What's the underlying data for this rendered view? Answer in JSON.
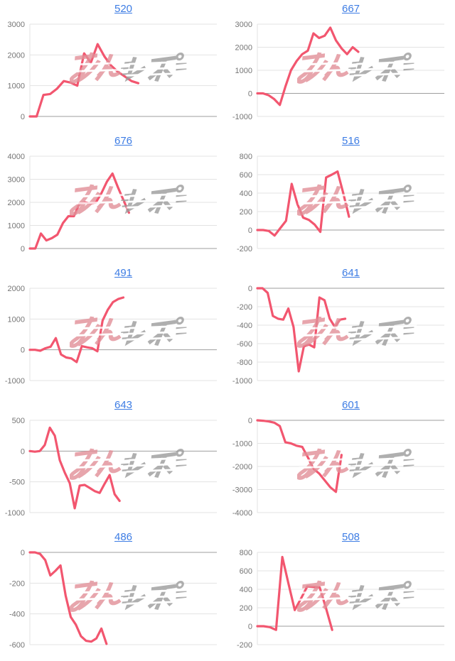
{
  "page": {
    "background": "#ffffff",
    "description_layout": "2-column by 5-row grid of slump line charts, each with a blue underlined numeric title link and a site watermark overlay"
  },
  "style": {
    "line_color": "#f2566f",
    "title_color": "#3e7de4",
    "axis_label_color": "#757575",
    "grid_color": "#e3e3e3",
    "zero_line_color": "#9e9e9e",
    "watermark_pink": "#e28f98",
    "watermark_gray": "#9c9c9c"
  },
  "watermark": {
    "text": "みんレポ",
    "part1": "みん",
    "part2": "レポ",
    "part1_color": "#e28f98",
    "part2_color": "#9c9c9c"
  },
  "chart_data": [
    {
      "type": "line",
      "title": "520",
      "ticks": [
        3000,
        2000,
        1000,
        0
      ],
      "ymin": 0,
      "ymax": 3000,
      "end_frac": 0.58,
      "values": [
        0,
        0,
        700,
        730,
        900,
        1150,
        1100,
        1000,
        2050,
        1750,
        2350,
        1950,
        1650,
        1450,
        1300,
        1150,
        1080
      ]
    },
    {
      "type": "line",
      "title": "667",
      "ticks": [
        3000,
        2000,
        1000,
        0,
        -1000
      ],
      "ymin": -1000,
      "ymax": 3000,
      "end_frac": 0.54,
      "values": [
        0,
        0,
        -80,
        -250,
        -500,
        300,
        1000,
        1400,
        1700,
        1850,
        2600,
        2400,
        2500,
        2850,
        2300,
        1950,
        1700,
        2000,
        1800
      ]
    },
    {
      "type": "line",
      "title": "676",
      "ticks": [
        4000,
        3000,
        2000,
        1000,
        0
      ],
      "ymin": 0,
      "ymax": 4000,
      "end_frac": 0.53,
      "values": [
        0,
        0,
        650,
        350,
        450,
        600,
        1100,
        1400,
        1400,
        1950,
        2000,
        1950,
        2000,
        2400,
        2900,
        3250,
        2650,
        2100,
        1550
      ]
    },
    {
      "type": "line",
      "title": "516",
      "ticks": [
        800,
        600,
        400,
        200,
        0,
        -200
      ],
      "ymin": -200,
      "ymax": 800,
      "end_frac": 0.49,
      "values": [
        0,
        0,
        -10,
        -60,
        20,
        100,
        500,
        280,
        135,
        110,
        60,
        -20,
        570,
        600,
        635,
        400,
        145
      ]
    },
    {
      "type": "line",
      "title": "491",
      "ticks": [
        2000,
        1000,
        0,
        -1000
      ],
      "ymin": -1000,
      "ymax": 2000,
      "end_frac": 0.5,
      "values": [
        0,
        0,
        -30,
        50,
        100,
        380,
        -150,
        -250,
        -280,
        -400,
        120,
        80,
        50,
        -50,
        950,
        1300,
        1550,
        1650,
        1700
      ]
    },
    {
      "type": "line",
      "title": "641",
      "ticks": [
        0,
        -200,
        -400,
        -600,
        -800,
        -1000
      ],
      "ymin": -1000,
      "ymax": 0,
      "end_frac": 0.47,
      "values": [
        0,
        0,
        -50,
        -300,
        -330,
        -340,
        -220,
        -420,
        -900,
        -630,
        -610,
        -640,
        -100,
        -130,
        -330,
        -420,
        -340,
        -330
      ]
    },
    {
      "type": "line",
      "title": "643",
      "ticks": [
        500,
        0,
        -500,
        -1000
      ],
      "ymin": -1000,
      "ymax": 500,
      "end_frac": 0.48,
      "values": [
        0,
        -10,
        0,
        100,
        380,
        250,
        -150,
        -350,
        -520,
        -930,
        -560,
        -550,
        -600,
        -650,
        -680,
        -530,
        -390,
        -700,
        -810
      ]
    },
    {
      "type": "line",
      "title": "601",
      "ticks": [
        0,
        -1000,
        -2000,
        -3000,
        -4000
      ],
      "ymin": -4000,
      "ymax": 0,
      "end_frac": 0.45,
      "values": [
        0,
        -20,
        -50,
        -100,
        -250,
        -950,
        -1000,
        -1100,
        -1150,
        -1600,
        -2100,
        -2300,
        -2600,
        -2900,
        -3100,
        -1500
      ]
    },
    {
      "type": "line",
      "title": "486",
      "ticks": [
        0,
        -200,
        -400,
        -600
      ],
      "ymin": -600,
      "ymax": 0,
      "end_frac": 0.41,
      "values": [
        0,
        0,
        -10,
        -50,
        -150,
        -120,
        -85,
        -280,
        -420,
        -470,
        -545,
        -575,
        -580,
        -560,
        -495,
        -595
      ]
    },
    {
      "type": "line",
      "title": "508",
      "ticks": [
        800,
        600,
        400,
        200,
        0,
        -200
      ],
      "ymin": -200,
      "ymax": 800,
      "end_frac": 0.4,
      "values": [
        0,
        0,
        -10,
        -40,
        750,
        460,
        175,
        300,
        430,
        425,
        420,
        200,
        -40
      ]
    }
  ]
}
